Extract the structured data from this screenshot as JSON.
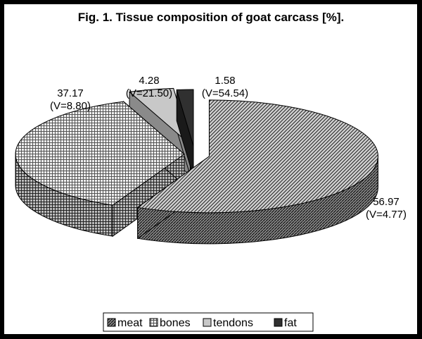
{
  "chart_data": {
    "type": "pie",
    "title": "Fig. 1. Tissue composition of goat carcass [%].",
    "categories": [
      "meat",
      "bones",
      "tendons",
      "fat"
    ],
    "values": [
      56.97,
      37.17,
      4.28,
      1.58
    ],
    "value_labels": [
      "56.97",
      "37.17",
      "4.28",
      "1.58"
    ],
    "cv_labels": [
      "(V=4.77)",
      "(V=8.80)",
      "(V=21.50)",
      "(V=54.54)"
    ],
    "legend": [
      "meat",
      "bones",
      "tendons",
      "fat"
    ],
    "legend_position": "bottom",
    "style": "3d-exploded",
    "colors": [
      "#888888",
      "#aaaaaa",
      "#c8c8c8",
      "#303030"
    ]
  }
}
